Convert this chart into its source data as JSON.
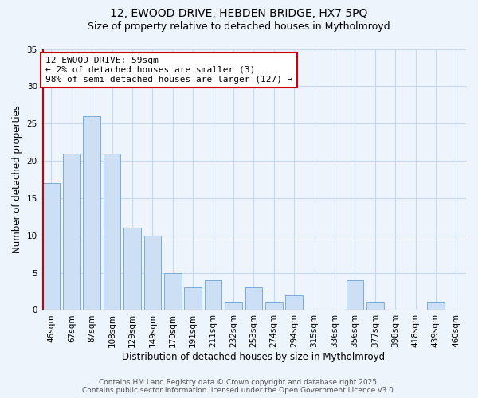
{
  "title_line1": "12, EWOOD DRIVE, HEBDEN BRIDGE, HX7 5PQ",
  "title_line2": "Size of property relative to detached houses in Mytholmroyd",
  "xlabel": "Distribution of detached houses by size in Mytholmroyd",
  "ylabel": "Number of detached properties",
  "bar_labels": [
    "46sqm",
    "67sqm",
    "87sqm",
    "108sqm",
    "129sqm",
    "149sqm",
    "170sqm",
    "191sqm",
    "211sqm",
    "232sqm",
    "253sqm",
    "274sqm",
    "294sqm",
    "315sqm",
    "336sqm",
    "356sqm",
    "377sqm",
    "398sqm",
    "418sqm",
    "439sqm",
    "460sqm"
  ],
  "bar_values": [
    17,
    21,
    26,
    21,
    11,
    10,
    5,
    3,
    4,
    1,
    3,
    1,
    2,
    0,
    0,
    4,
    1,
    0,
    0,
    1,
    0
  ],
  "bar_color": "#ccdff5",
  "bar_edge_color": "#7aabda",
  "grid_color": "#c5d8f0",
  "background_color": "#eef4fc",
  "vline_color": "#cc0000",
  "annotation_title": "12 EWOOD DRIVE: 59sqm",
  "annotation_line1": "← 2% of detached houses are smaller (3)",
  "annotation_line2": "98% of semi-detached houses are larger (127) →",
  "annotation_box_color": "#ffffff",
  "annotation_box_edge": "#cc0000",
  "ylim": [
    0,
    35
  ],
  "yticks": [
    0,
    5,
    10,
    15,
    20,
    25,
    30,
    35
  ],
  "footer_line1": "Contains HM Land Registry data © Crown copyright and database right 2025.",
  "footer_line2": "Contains public sector information licensed under the Open Government Licence v3.0.",
  "title_fontsize": 10,
  "subtitle_fontsize": 9,
  "axis_label_fontsize": 8.5,
  "tick_fontsize": 7.5,
  "annotation_fontsize": 8,
  "footer_fontsize": 6.5
}
